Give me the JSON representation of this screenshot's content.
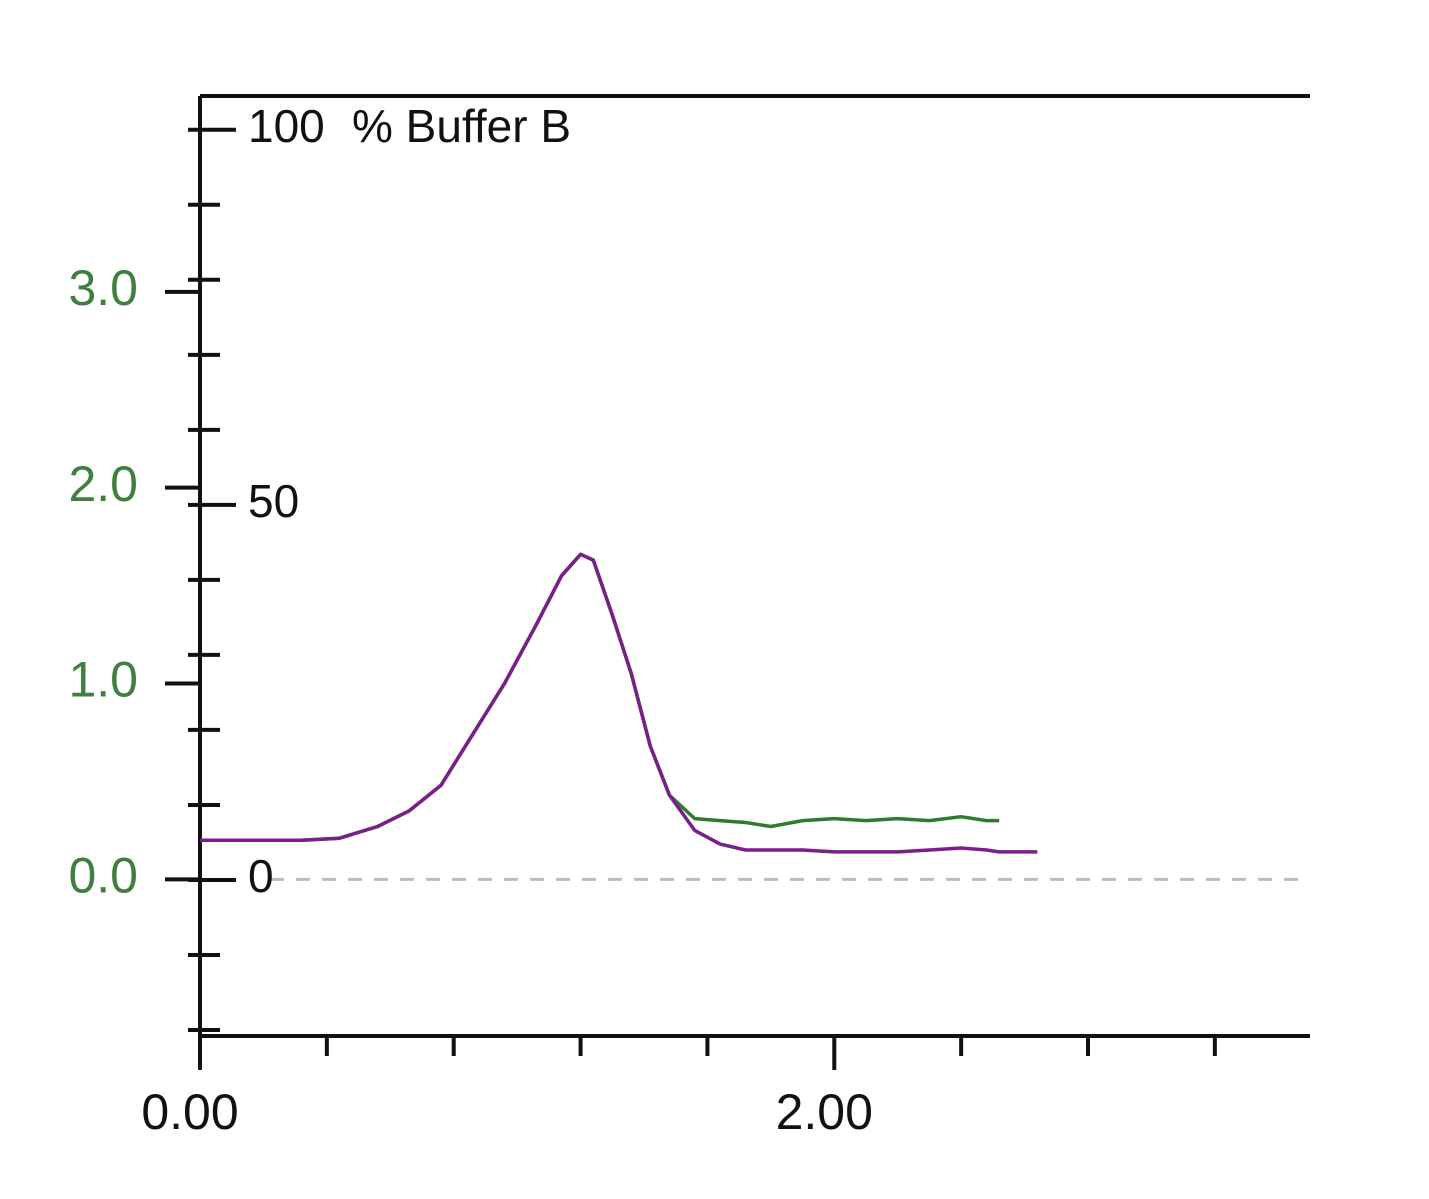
{
  "chart_data": {
    "type": "line",
    "x": [
      0,
      0.16,
      0.32,
      0.44,
      0.56,
      0.66,
      0.76,
      0.86,
      0.96,
      1.06,
      1.14,
      1.2,
      1.24,
      1.3,
      1.36,
      1.42,
      1.48,
      1.56,
      1.64,
      1.72,
      1.8,
      1.9,
      2.0,
      2.1,
      2.2,
      2.3,
      2.4,
      2.48,
      2.52,
      2.58,
      2.64
    ],
    "series": [
      {
        "color": "#2e7d2e",
        "values": [
          0.2,
          0.2,
          0.2,
          0.21,
          0.27,
          0.35,
          0.48,
          0.74,
          1.0,
          1.3,
          1.55,
          1.66,
          1.63,
          1.35,
          1.05,
          0.68,
          0.43,
          0.31,
          0.3,
          0.29,
          0.27,
          0.3,
          0.31,
          0.3,
          0.31,
          0.3,
          0.32,
          0.3,
          0.3,
          null,
          null
        ]
      },
      {
        "color": "#7a1f8a",
        "values": [
          0.2,
          0.2,
          0.2,
          0.21,
          0.27,
          0.35,
          0.48,
          0.74,
          1.0,
          1.3,
          1.55,
          1.66,
          1.63,
          1.35,
          1.05,
          0.68,
          0.43,
          0.25,
          0.18,
          0.15,
          0.15,
          0.15,
          0.14,
          0.14,
          0.14,
          0.15,
          0.16,
          0.15,
          0.14,
          0.14,
          0.14
        ]
      }
    ],
    "xlim": [
      0,
      3.5
    ],
    "xticks": [
      {
        "value": 0,
        "label": "0.00"
      },
      {
        "value": 2,
        "label": "2.00"
      }
    ],
    "x_minor_ticks": [
      0.4,
      0.8,
      1.2,
      1.6,
      2.4,
      2.8,
      3.2
    ],
    "ylim": [
      -0.8,
      4.0
    ],
    "yticks": [
      {
        "value": 0,
        "label": "0.0"
      },
      {
        "value": 1,
        "label": "1.0"
      },
      {
        "value": 2,
        "label": "2.0"
      },
      {
        "value": 3,
        "label": "3.0"
      }
    ],
    "y_color": "#3f7f3f",
    "y2lim": [
      -20.8,
      104.5
    ],
    "y2ticks": [
      0,
      50,
      100
    ],
    "y2_minor_ticks": [
      -20,
      -10,
      10,
      20,
      30,
      40,
      60,
      70,
      80,
      90
    ],
    "y2_label": "% Buffer B",
    "zero_line": true
  }
}
